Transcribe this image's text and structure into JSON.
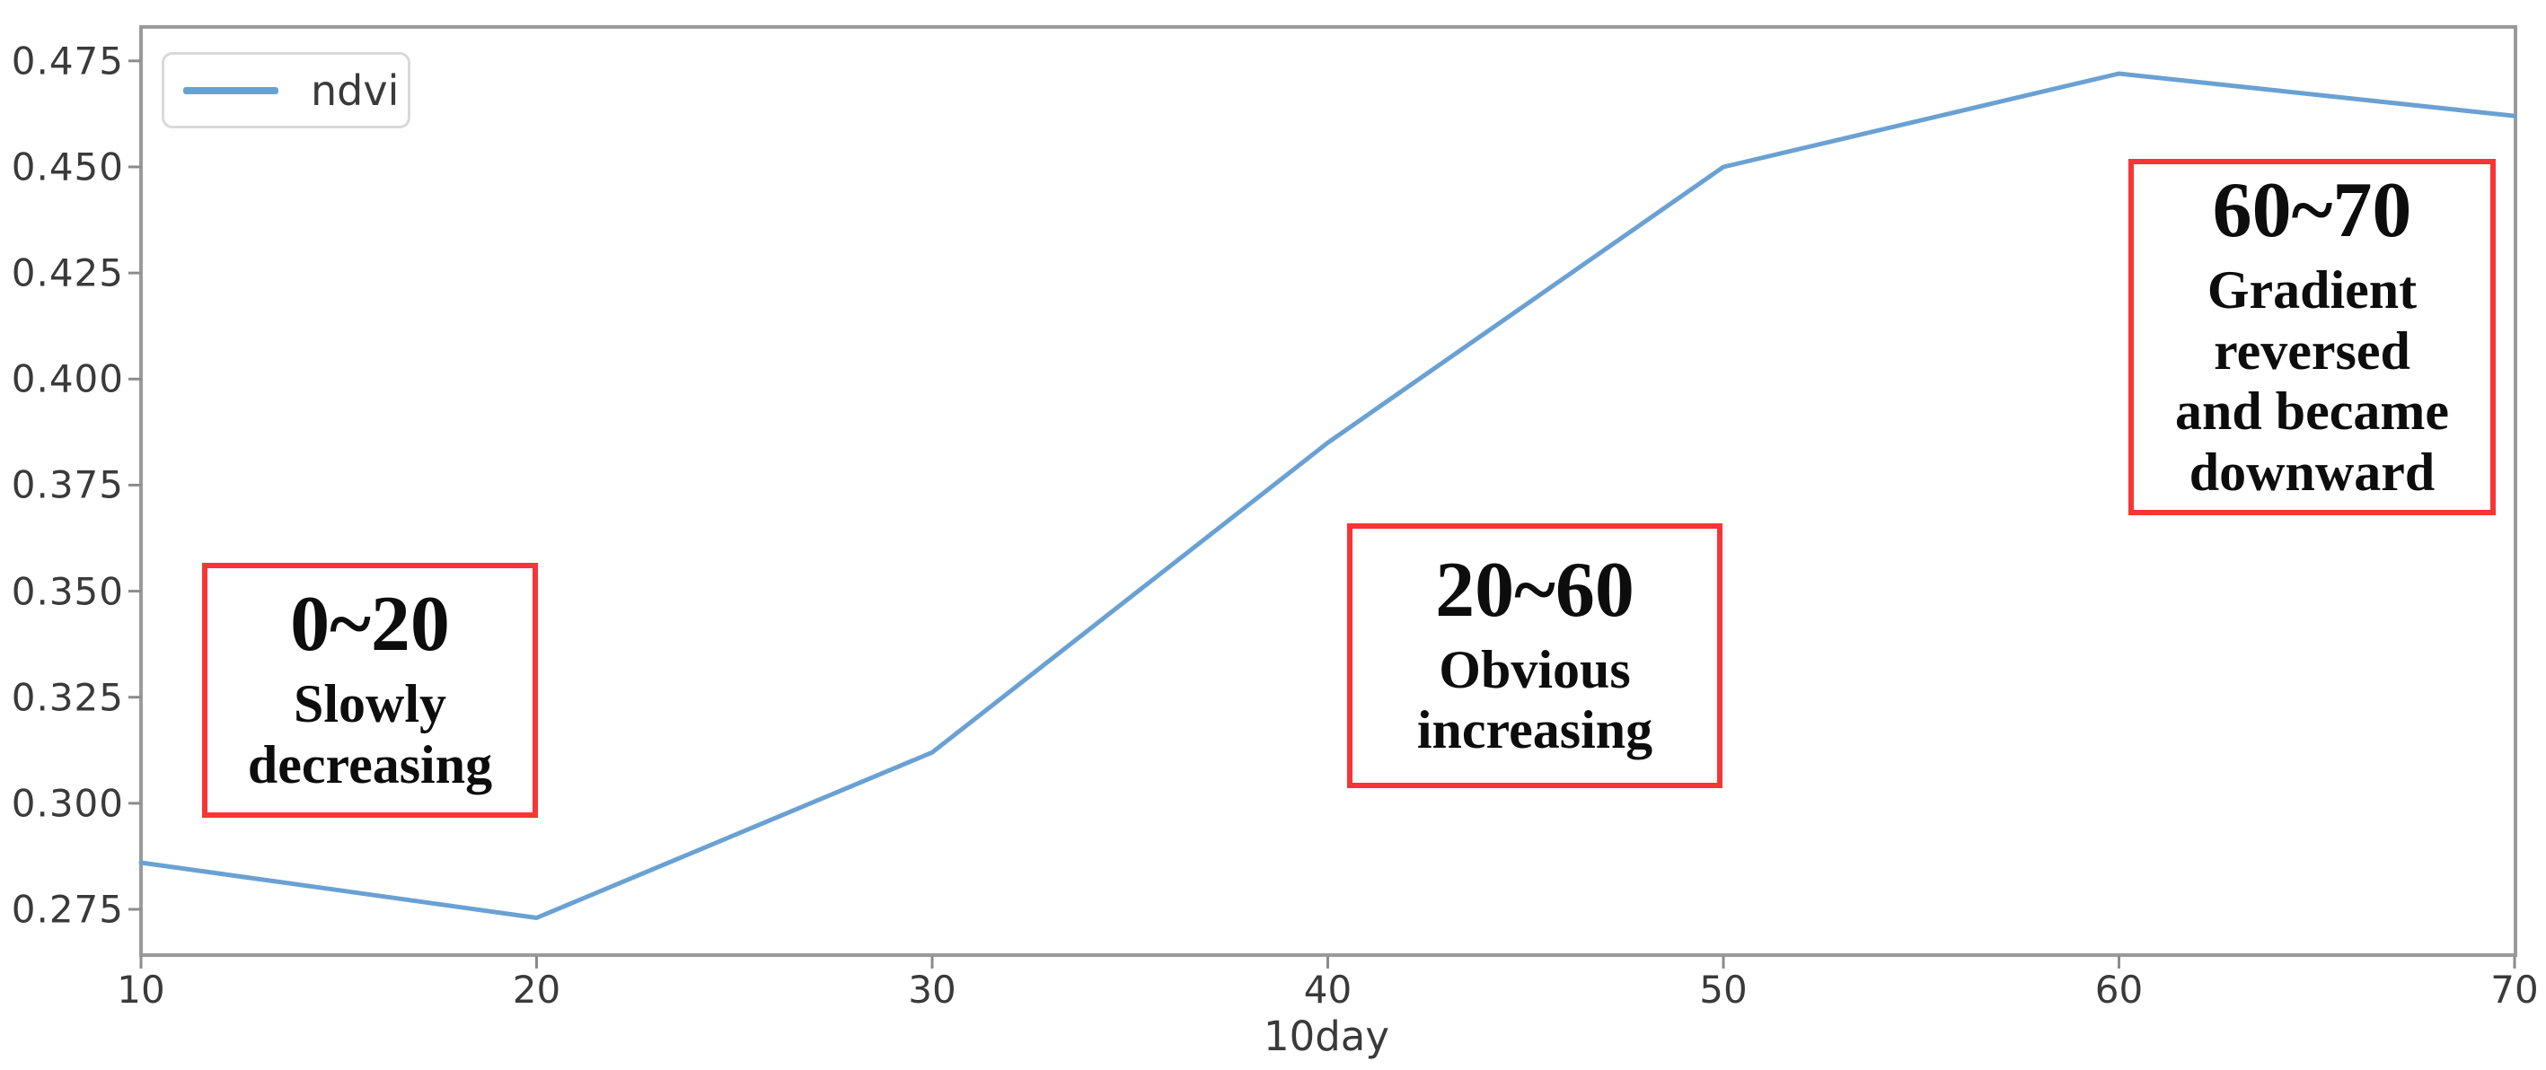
{
  "legend": {
    "label": "ndvi"
  },
  "xaxis": {
    "title": "10day"
  },
  "chart_data": {
    "type": "line",
    "title": "",
    "xlabel": "10day",
    "ylabel": "",
    "x": [
      10,
      20,
      30,
      40,
      50,
      60,
      70
    ],
    "series": [
      {
        "name": "ndvi",
        "color": "#6aa1d3",
        "values": [
          0.286,
          0.273,
          0.312,
          0.385,
          0.45,
          0.472,
          0.462
        ]
      }
    ],
    "xlim": [
      10,
      70
    ],
    "ylim": [
      0.264,
      0.483
    ],
    "xticks": [
      "10",
      "20",
      "30",
      "40",
      "50",
      "60",
      "70"
    ],
    "yticks": [
      "0.475",
      "0.450",
      "0.425",
      "0.400",
      "0.375",
      "0.350",
      "0.325",
      "0.300",
      "0.275"
    ],
    "grid": false,
    "legend_position": "upper left",
    "annotations": [
      {
        "range": "0~20",
        "description": "Slowly decreasing"
      },
      {
        "range": "20~60",
        "description": "Obvious increasing"
      },
      {
        "range": "60~70",
        "description": "Gradient reversed and became downward"
      }
    ]
  },
  "annotations": [
    {
      "title": "0~20",
      "line1": "Slowly",
      "line2": "decreasing"
    },
    {
      "title": "20~60",
      "line1": "Obvious",
      "line2": "increasing"
    },
    {
      "title": "60~70",
      "line1": "Gradient",
      "line2": "reversed",
      "line3": "and became",
      "line4": "downward"
    }
  ],
  "colors": {
    "line": "#6aa1d3",
    "annotation_border": "#f83535",
    "spine": "#9a9a9a",
    "tick": "#8c8c8c",
    "text": "#3a3a3a"
  }
}
